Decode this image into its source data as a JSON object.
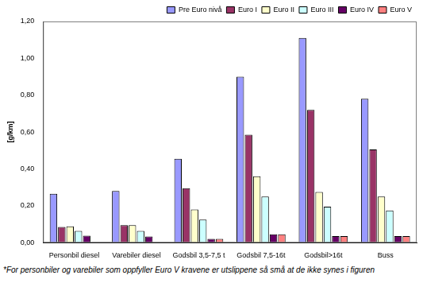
{
  "chart_data": {
    "type": "bar",
    "y_label": "[g/km]",
    "categories": [
      "Personbil diesel",
      "Varebiler diesel",
      "Godsbil 3,5-7,5 t",
      "Godsbil 7,5-16t",
      "Godsbil>16t",
      "Buss"
    ],
    "series": [
      {
        "name": "Pre Euro nivå",
        "color": "#9999ff",
        "values": [
          0.265,
          0.28,
          0.455,
          0.9,
          1.11,
          0.78
        ]
      },
      {
        "name": "Euro I",
        "color": "#993366",
        "values": [
          0.085,
          0.095,
          0.295,
          0.585,
          0.72,
          0.505
        ]
      },
      {
        "name": "Euro II",
        "color": "#ffffcc",
        "values": [
          0.088,
          0.095,
          0.18,
          0.36,
          0.275,
          0.25
        ]
      },
      {
        "name": "Euro III",
        "color": "#ccffff",
        "values": [
          0.063,
          0.063,
          0.125,
          0.25,
          0.195,
          0.175
        ]
      },
      {
        "name": "Euro IV",
        "color": "#660066",
        "values": [
          0.038,
          0.033,
          0.02,
          0.045,
          0.035,
          0.035
        ]
      },
      {
        "name": "Euro V",
        "color": "#ff8080",
        "values": [
          null,
          null,
          0.02,
          0.045,
          0.035,
          0.035
        ]
      }
    ],
    "ylim": [
      0,
      1.2
    ],
    "yticks": [
      {
        "value": 0,
        "label": "0,00"
      },
      {
        "value": 0.2,
        "label": "0,20"
      },
      {
        "value": 0.4,
        "label": "0,40"
      },
      {
        "value": 0.6,
        "label": "0,60"
      },
      {
        "value": 0.8,
        "label": "0,80"
      },
      {
        "value": 1.0,
        "label": "1,00"
      },
      {
        "value": 1.2,
        "label": "1,20"
      }
    ],
    "grid": false,
    "legend": "top-right",
    "annotations": [
      "*For personbiler og varebiler som oppfyller Euro V kravene er utslippene så små at de ikke synes i figuren"
    ]
  }
}
